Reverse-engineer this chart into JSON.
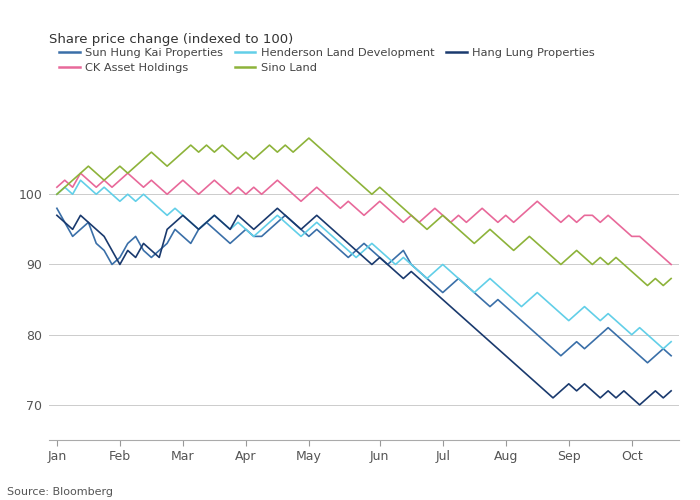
{
  "title": "Share price change (indexed to 100)",
  "source": "Source: Bloomberg",
  "ylabel_ticks": [
    70,
    80,
    90,
    100
  ],
  "xlabels": [
    "Jan",
    "Feb",
    "Mar",
    "Apr",
    "May",
    "Jun",
    "Jul",
    "Aug",
    "Sep",
    "Oct"
  ],
  "colors": {
    "Sun Hung Kai Properties": "#3a6fa8",
    "CK Asset Holdings": "#e8699a",
    "Henderson Land Development": "#62cfe8",
    "Sino Land": "#8db33a",
    "Hang Lung Properties": "#1a3a6e"
  },
  "series": {
    "Sun Hung Kai Properties": [
      98,
      96,
      94,
      95,
      96,
      93,
      92,
      90,
      91,
      93,
      94,
      92,
      91,
      92,
      93,
      95,
      94,
      93,
      95,
      96,
      95,
      94,
      93,
      94,
      95,
      94,
      94,
      95,
      96,
      97,
      96,
      95,
      94,
      95,
      94,
      93,
      92,
      91,
      92,
      93,
      92,
      91,
      90,
      91,
      92,
      90,
      89,
      88,
      87,
      86,
      87,
      88,
      87,
      86,
      85,
      84,
      85,
      84,
      83,
      82,
      81,
      80,
      79,
      78,
      77,
      78,
      79,
      78,
      79,
      80,
      81,
      80,
      79,
      78,
      77,
      76,
      77,
      78,
      77
    ],
    "CK Asset Holdings": [
      101,
      102,
      101,
      103,
      102,
      101,
      102,
      101,
      102,
      103,
      102,
      101,
      102,
      101,
      100,
      101,
      102,
      101,
      100,
      101,
      102,
      101,
      100,
      101,
      100,
      101,
      100,
      101,
      102,
      101,
      100,
      99,
      100,
      101,
      100,
      99,
      98,
      99,
      98,
      97,
      98,
      99,
      98,
      97,
      96,
      97,
      96,
      97,
      98,
      97,
      96,
      97,
      96,
      97,
      98,
      97,
      96,
      97,
      96,
      97,
      98,
      99,
      98,
      97,
      96,
      97,
      96,
      97,
      97,
      96,
      97,
      96,
      95,
      94,
      94,
      93,
      92,
      91,
      90
    ],
    "Henderson Land Development": [
      100,
      101,
      100,
      102,
      101,
      100,
      101,
      100,
      99,
      100,
      99,
      100,
      99,
      98,
      97,
      98,
      97,
      96,
      95,
      96,
      97,
      96,
      95,
      96,
      95,
      94,
      95,
      96,
      97,
      96,
      95,
      94,
      95,
      96,
      95,
      94,
      93,
      92,
      91,
      92,
      93,
      92,
      91,
      90,
      91,
      90,
      89,
      88,
      89,
      90,
      89,
      88,
      87,
      86,
      87,
      88,
      87,
      86,
      85,
      84,
      85,
      86,
      85,
      84,
      83,
      82,
      83,
      84,
      83,
      82,
      83,
      82,
      81,
      80,
      81,
      80,
      79,
      78,
      79
    ],
    "Sino Land": [
      100,
      101,
      102,
      103,
      104,
      103,
      102,
      103,
      104,
      103,
      104,
      105,
      106,
      105,
      104,
      105,
      106,
      107,
      106,
      107,
      106,
      107,
      106,
      105,
      106,
      105,
      106,
      107,
      106,
      107,
      106,
      107,
      108,
      107,
      106,
      105,
      104,
      103,
      102,
      101,
      100,
      101,
      100,
      99,
      98,
      97,
      96,
      95,
      96,
      97,
      96,
      95,
      94,
      93,
      94,
      95,
      94,
      93,
      92,
      93,
      94,
      93,
      92,
      91,
      90,
      91,
      92,
      91,
      90,
      91,
      90,
      91,
      90,
      89,
      88,
      87,
      88,
      87,
      88
    ],
    "Hang Lung Properties": [
      97,
      96,
      95,
      97,
      96,
      95,
      94,
      92,
      90,
      92,
      91,
      93,
      92,
      91,
      95,
      96,
      97,
      96,
      95,
      96,
      97,
      96,
      95,
      97,
      96,
      95,
      96,
      97,
      98,
      97,
      96,
      95,
      96,
      97,
      96,
      95,
      94,
      93,
      92,
      91,
      90,
      91,
      90,
      89,
      88,
      89,
      88,
      87,
      86,
      85,
      84,
      83,
      82,
      81,
      80,
      79,
      78,
      77,
      76,
      75,
      74,
      73,
      72,
      71,
      72,
      73,
      72,
      73,
      72,
      71,
      72,
      71,
      72,
      71,
      70,
      71,
      72,
      71,
      72
    ]
  }
}
